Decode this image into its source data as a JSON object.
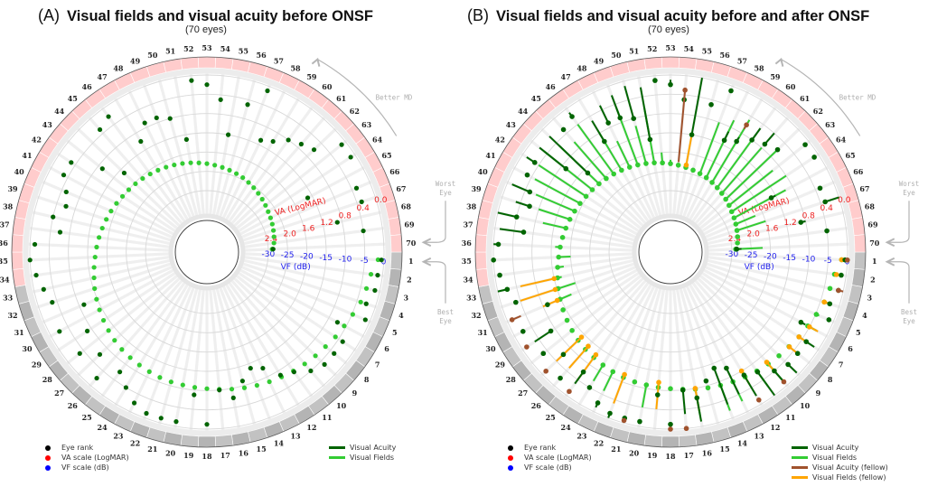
{
  "chart_data": [
    {
      "type": "scatter",
      "panel": "A",
      "tag": "(A)",
      "title": "Visual fields and visual acuity before ONSF",
      "subtitle": "(70 eyes)",
      "layout": "polar-radial",
      "rank_labels": {
        "count": 70,
        "best_rank": 1,
        "worst_rank": 70
      },
      "va_scale": {
        "label": "VA (LogMAR)",
        "ticks": [
          "2.4",
          "2.0",
          "1.6",
          "1.2",
          "0.8",
          "0.4",
          "0.0"
        ],
        "range": [
          2.4,
          0.0
        ]
      },
      "vf_scale": {
        "label": "VF (dB)",
        "ticks": [
          "-30",
          "-25",
          "-20",
          "-15",
          "-10",
          "-5",
          "0"
        ],
        "range": [
          -30,
          0
        ]
      },
      "annotations": {
        "better_md": "Better MD",
        "worst_eye": "Worst Eye",
        "best_eye": "Best Eye"
      },
      "band": {
        "best_group_ranks": [
          1,
          33
        ],
        "worst_group_ranks": [
          34,
          70
        ]
      },
      "series": [
        {
          "name": "Visual Acuity",
          "color": "#006400",
          "values": [
            0.05,
            0.1,
            0.1,
            0.2,
            0.1,
            0.6,
            0.3,
            0.3,
            0.3,
            0.4,
            0.6,
            0.7,
            1.0,
            1.1,
            0.9,
            0.6,
            0.8,
            0.1,
            0.7,
            0.1,
            0.1,
            0.1,
            0.2,
            0.4,
            0.6,
            0.2,
            0.6,
            0.3,
            0.7,
            0.2,
            0.9,
            0.3,
            0.2,
            0.1,
            0.0,
            0.1,
            0.6,
            0.4,
            0.6,
            0.5,
            0.3,
            0.3,
            0.9,
            1.3,
            0.3,
            0.2,
            1.0,
            0.7,
            0.7,
            0.8,
            1.3,
            0.1,
            0.2,
            0.5,
            1.2,
            0.5,
            0.1,
            1.1,
            1.0,
            0.8,
            0.7,
            0.6,
            0.1,
            0.1,
            1.3,
            0.3,
            0.3,
            0.9,
            0.4,
            2.3
          ]
        },
        {
          "name": "Visual Fields",
          "color": "#33cc33",
          "values": [
            -1.5,
            -3.0,
            -3.5,
            -4.0,
            -4.8,
            -5.5,
            -6.0,
            -6.6,
            -7.0,
            -7.4,
            -7.8,
            -8.2,
            -8.6,
            -9.0,
            -9.4,
            -9.8,
            -10.2,
            -10.5,
            -10.7,
            -10.9,
            -11.0,
            -11.2,
            -11.5,
            -11.8,
            -12.1,
            -12.4,
            -12.8,
            -13.3,
            -13.8,
            -14.3,
            -14.8,
            -15.3,
            -15.9,
            -16.4,
            -16.9,
            -17.3,
            -17.7,
            -18.1,
            -18.5,
            -18.9,
            -19.3,
            -19.7,
            -20.0,
            -20.3,
            -20.6,
            -20.9,
            -21.2,
            -21.5,
            -21.8,
            -22.1,
            -22.4,
            -22.7,
            -23.0,
            -23.3,
            -23.6,
            -23.9,
            -24.2,
            -24.5,
            -24.9,
            -25.3,
            -25.7,
            -26.1,
            -26.5,
            -26.9,
            -27.2,
            -27.5,
            -27.8,
            -28.1,
            -28.4,
            -29.0
          ]
        }
      ],
      "legend": {
        "markers": [
          {
            "label": "Eye rank",
            "color": "#000000"
          },
          {
            "label": "VA scale (LogMAR)",
            "color": "#ff0000"
          },
          {
            "label": "VF scale (dB)",
            "color": "#0000ff"
          }
        ],
        "lines": [
          {
            "label": "Visual Acuity",
            "color": "#006400"
          },
          {
            "label": "Visual Fields",
            "color": "#33cc33"
          }
        ]
      }
    },
    {
      "type": "scatter",
      "panel": "B",
      "tag": "(B)",
      "title": "Visual fields and visual acuity before and after ONSF",
      "subtitle": "(70 eyes)",
      "layout": "polar-radial-change",
      "rank_labels": {
        "count": 70,
        "best_rank": 1,
        "worst_rank": 70
      },
      "va_scale": {
        "label": "VA (LogMAR)",
        "ticks": [
          "2.4",
          "2.0",
          "1.6",
          "1.2",
          "0.8",
          "0.4",
          "0.0"
        ],
        "range": [
          2.4,
          0.0
        ]
      },
      "vf_scale": {
        "label": "VF (dB)",
        "ticks": [
          "-30",
          "-25",
          "-20",
          "-15",
          "-10",
          "-5",
          "0"
        ],
        "range": [
          -30,
          0
        ]
      },
      "annotations": {
        "better_md": "Better MD",
        "worst_eye": "Worst Eye",
        "best_eye": "Best Eye"
      },
      "band": {
        "best_group_ranks": [
          1,
          33
        ],
        "worst_group_ranks": [
          34,
          70
        ]
      },
      "series": [
        {
          "name": "Visual Acuity",
          "color": "#006400",
          "before": [
            0.05,
            0.1,
            0.1,
            0.2,
            0.1,
            0.6,
            0.3,
            0.3,
            0.3,
            0.4,
            0.6,
            0.7,
            1.0,
            1.1,
            0.9,
            0.6,
            0.8,
            0.1,
            0.7,
            0.1,
            0.1,
            0.1,
            0.2,
            0.4,
            0.6,
            0.2,
            0.6,
            0.3,
            0.7,
            0.2,
            0.9,
            0.3,
            0.2,
            0.1,
            0.0,
            0.1,
            0.6,
            0.4,
            0.6,
            0.5,
            0.3,
            0.3,
            0.9,
            1.3,
            0.3,
            0.2,
            1.0,
            0.7,
            0.7,
            0.8,
            1.3,
            0.1,
            0.2,
            0.5,
            1.2,
            0.5,
            0.1,
            1.1,
            1.0,
            0.8,
            0.7,
            0.6,
            0.1,
            0.1,
            1.3,
            0.3,
            0.3,
            0.9,
            0.4,
            2.3
          ],
          "after": [
            0.05,
            0.1,
            0.1,
            0.2,
            0.05,
            0.5,
            0.1,
            0.3,
            0.05,
            0.1,
            0.0,
            0.2,
            0.4,
            0.3,
            0.9,
            0.1,
            0.3,
            0.1,
            0.7,
            0.1,
            0.1,
            0.0,
            0.1,
            0.4,
            0.3,
            0.2,
            0.6,
            0.3,
            0.3,
            0.2,
            0.9,
            0.3,
            0.0,
            0.1,
            0.0,
            0.0,
            0.1,
            0.0,
            0.3,
            0.1,
            0.3,
            0.1,
            0.2,
            0.2,
            0.3,
            0.1,
            0.5,
            0.3,
            0.2,
            0.1,
            0.2,
            0.1,
            0.1,
            0.5,
            0.0,
            0.5,
            0.1,
            0.9,
            0.9,
            0.5,
            0.4,
            0.6,
            0.1,
            0.1,
            1.2,
            0.3,
            0.0,
            0.8,
            0.4,
            2.2
          ]
        },
        {
          "name": "Visual Fields",
          "color": "#33cc33",
          "before": [
            -1.5,
            -3.0,
            -3.5,
            -4.0,
            -4.8,
            -5.5,
            -6.0,
            -6.6,
            -7.0,
            -7.4,
            -7.8,
            -8.2,
            -8.6,
            -9.0,
            -9.4,
            -9.8,
            -10.2,
            -10.5,
            -10.7,
            -10.9,
            -11.0,
            -11.2,
            -11.5,
            -11.8,
            -12.1,
            -12.4,
            -12.8,
            -13.3,
            -13.8,
            -14.3,
            -14.8,
            -15.3,
            -15.9,
            -16.4,
            -16.9,
            -17.3,
            -17.7,
            -18.1,
            -18.5,
            -18.9,
            -19.3,
            -19.7,
            -20.0,
            -20.3,
            -20.6,
            -20.9,
            -21.2,
            -21.5,
            -21.8,
            -22.1,
            -22.4,
            -22.7,
            -23.0,
            -23.3,
            -23.6,
            -23.9,
            -24.2,
            -24.5,
            -24.9,
            -25.3,
            -25.7,
            -26.1,
            -26.5,
            -26.9,
            -27.2,
            -27.5,
            -27.8,
            -28.1,
            -28.4,
            -29.0
          ],
          "after": [
            -1.0,
            -2.0,
            -3.0,
            -2.5,
            -4.0,
            -3.0,
            -5.0,
            -6.6,
            -7.0,
            -2.0,
            -3.0,
            -8.2,
            -3.0,
            -2.0,
            -9.4,
            -3.0,
            -10.2,
            -10.5,
            -10.7,
            -5.0,
            -10.9,
            -11.2,
            -6.0,
            -7.0,
            -12.1,
            -12.4,
            -12.8,
            -13.3,
            -13.8,
            -14.3,
            -18.0,
            -20.0,
            -17.0,
            -18.0,
            -20.0,
            -16.0,
            -18.0,
            -12.0,
            -10.0,
            -8.0,
            -6.0,
            -5.0,
            -4.0,
            -6.0,
            -8.0,
            -5.0,
            -10.0,
            -14.0,
            -6.0,
            -12.0,
            -8.0,
            -20.0,
            -22.0,
            -23.3,
            -23.6,
            -23.9,
            -10.0,
            -8.0,
            -6.0,
            -8.0,
            -10.0,
            -8.0,
            -12.0,
            -10.0,
            -12.0,
            -22.0,
            -20.0,
            -28.1,
            -28.4,
            -22.0
          ]
        },
        {
          "name": "Visual Acuity (fellow)",
          "color": "#a0522d",
          "eyes": [
            1,
            3,
            10,
            12,
            17,
            18,
            21,
            25,
            27,
            29,
            31,
            54,
            59
          ],
          "before": [
            0.0,
            0.1,
            0.1,
            0.1,
            0.0,
            0.0,
            0.05,
            0.1,
            0.1,
            0.1,
            0.1,
            0.3,
            0.6
          ],
          "after": [
            0.0,
            0.0,
            0.1,
            0.05,
            0.0,
            0.0,
            0.0,
            0.05,
            0.05,
            0.1,
            0.3,
            1.8,
            0.7
          ]
        },
        {
          "name": "Visual Fields (fellow)",
          "color": "#ffa500",
          "eyes": [
            1,
            2,
            4,
            6,
            7,
            8,
            10,
            12,
            16,
            19,
            22,
            25,
            26,
            27,
            31,
            32,
            33,
            55
          ],
          "before": [
            -1.5,
            -2.5,
            -4.0,
            -5.0,
            -6.0,
            -6.5,
            -8.0,
            -10.0,
            -10.0,
            -12.0,
            -12.0,
            -13.0,
            -13.5,
            -14.0,
            -14.0,
            -14.5,
            -15.0,
            -23.0
          ],
          "after": [
            -1.0,
            -2.0,
            -2.0,
            -2.5,
            -3.0,
            -4.0,
            -5.0,
            -6.0,
            -4.0,
            -5.0,
            -4.0,
            -5.0,
            -6.0,
            -5.0,
            -10.0,
            -5.0,
            -6.0,
            -15.0
          ]
        }
      ],
      "legend": {
        "markers": [
          {
            "label": "Eye rank",
            "color": "#000000"
          },
          {
            "label": "VA scale (LogMAR)",
            "color": "#ff0000"
          },
          {
            "label": "VF scale (dB)",
            "color": "#0000ff"
          }
        ],
        "lines": [
          {
            "label": "Visual Acuity",
            "color": "#006400"
          },
          {
            "label": "Visual Fields",
            "color": "#33cc33"
          },
          {
            "label": "Visual Acuity (fellow)",
            "color": "#a0522d"
          },
          {
            "label": "Visual Fields (fellow)",
            "color": "#ffa500"
          }
        ]
      }
    }
  ]
}
